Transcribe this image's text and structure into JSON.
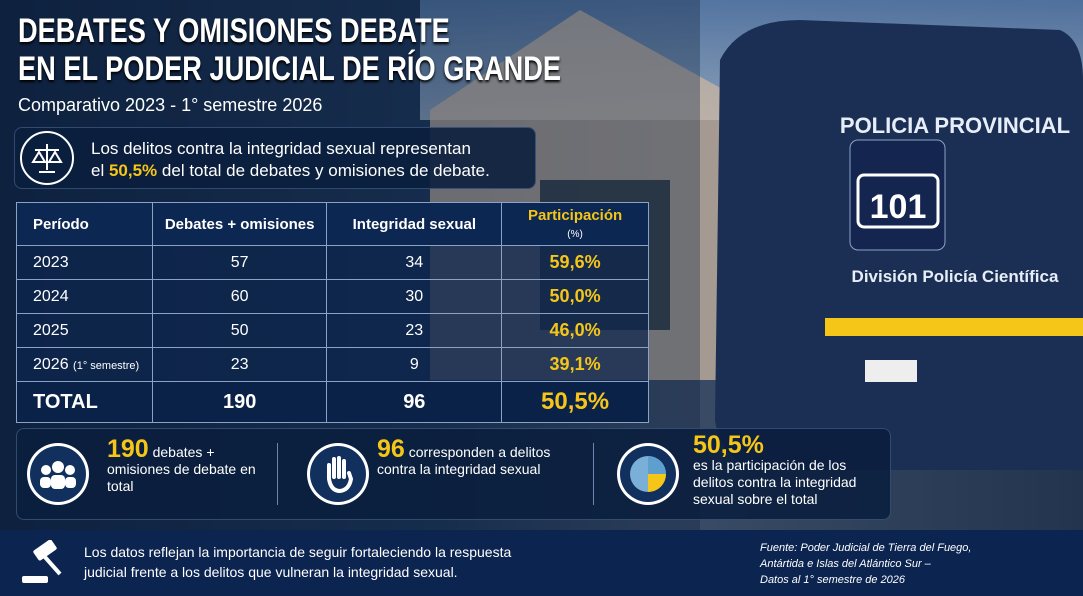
{
  "header": {
    "title_line1": "DEBATES Y OMISIONES DEBATE",
    "title_line2": "EN EL PODER JUDICIAL DE RÍO GRANDE",
    "subtitle": "Comparativo 2023 - 1° semestre 2026"
  },
  "highlight": {
    "line1": "Los delitos contra la integridad sexual representan",
    "prefix": "el",
    "value": "50,5%",
    "suffix": "del total de debates y omisiones de debate."
  },
  "table": {
    "columns": [
      "Período",
      "Debates + omisiones",
      "Integridad sexual",
      "Participación"
    ],
    "participation_unit": "(%)",
    "rows": [
      {
        "period": "2023",
        "debates": 57,
        "integridad": 34,
        "participacion": "59,6%"
      },
      {
        "period": "2024",
        "debates": 60,
        "integridad": 30,
        "participacion": "50,0%"
      },
      {
        "period": "2025",
        "debates": 50,
        "integridad": 23,
        "participacion": "46,0%"
      },
      {
        "period": "2026",
        "period_note": "(1° semestre)",
        "debates": 23,
        "integridad": 9,
        "participacion": "39,1%"
      }
    ],
    "total": {
      "label": "TOTAL",
      "debates": 190,
      "integridad": 96,
      "participacion": "50,5%"
    }
  },
  "stats": [
    {
      "value": "190",
      "text": "debates + omisiones de debate en total"
    },
    {
      "value": "96",
      "text": "corresponden a delitos contra la integridad sexual"
    },
    {
      "value": "50,5%",
      "text": "es la participación de los delitos contra la integridad sexual sobre el total"
    }
  ],
  "photo": {
    "van_text": "POLICIA PROVINCIAL",
    "phone": "101",
    "division": "División Policía Científica"
  },
  "footer": {
    "text": "Los datos reflejan la importancia de seguir fortaleciendo la respuesta judicial frente a los delitos que vulneran la integridad sexual.",
    "source_line1": "Fuente: Poder Judicial de Tierra del Fuego,",
    "source_line2": "Antártida e Islas del Atlántico Sur –",
    "source_line3": "Datos al 1° semestre de 2026"
  }
}
